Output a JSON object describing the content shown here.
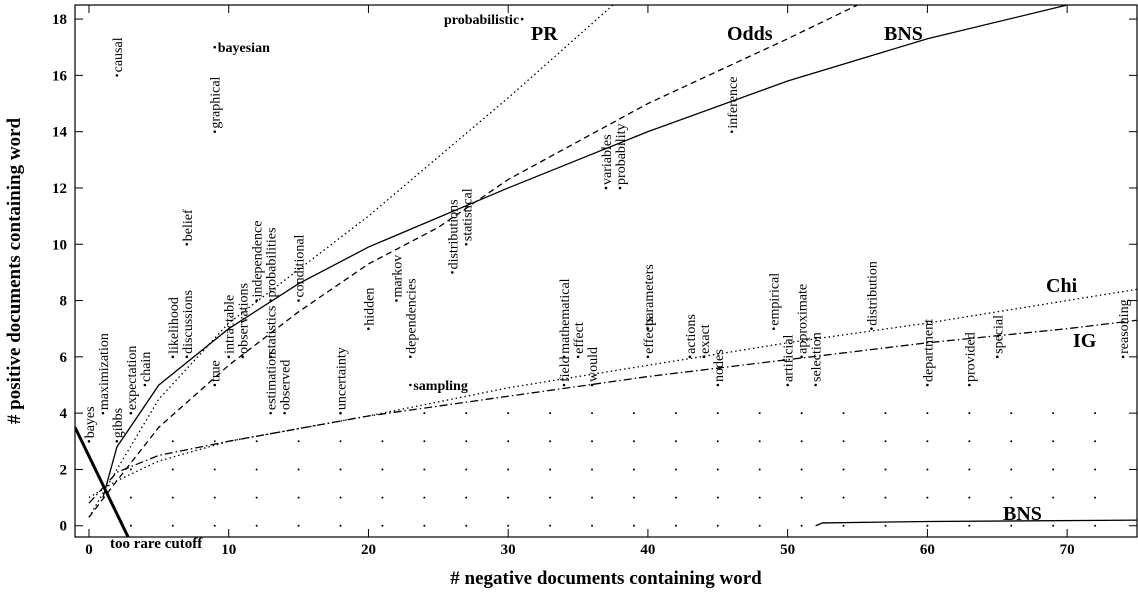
{
  "chart_data": {
    "type": "scatter",
    "x_label": "# negative documents containing word",
    "y_label": "# positive documents containing word",
    "xlim": [
      -1,
      75
    ],
    "ylim": [
      -0.4,
      18.5
    ],
    "xticks": [
      0,
      10,
      20,
      30,
      40,
      50,
      60,
      70
    ],
    "yticks": [
      0,
      2,
      4,
      6,
      8,
      10,
      12,
      14,
      16,
      18
    ],
    "points": [
      {
        "label": "causal",
        "x": 2,
        "y": 16
      },
      {
        "label": "graphical",
        "x": 9,
        "y": 14
      },
      {
        "label": "inference",
        "x": 46,
        "y": 14
      },
      {
        "label": "variables",
        "x": 37,
        "y": 12
      },
      {
        "label": "probability",
        "x": 38,
        "y": 12
      },
      {
        "label": "distributions",
        "x": 26,
        "y": 9
      },
      {
        "label": "statistical",
        "x": 27,
        "y": 10
      },
      {
        "label": "belief",
        "x": 7,
        "y": 10
      },
      {
        "label": "independence",
        "x": 12,
        "y": 8
      },
      {
        "label": "probabilities",
        "x": 13,
        "y": 8
      },
      {
        "label": "conditional",
        "x": 15,
        "y": 8
      },
      {
        "label": "markov",
        "x": 22,
        "y": 8
      },
      {
        "label": "dependencies",
        "x": 23,
        "y": 6
      },
      {
        "label": "hidden",
        "x": 20,
        "y": 7
      },
      {
        "label": "uncertainty",
        "x": 18,
        "y": 4
      },
      {
        "label": "estimation",
        "x": 13,
        "y": 4
      },
      {
        "label": "statistics",
        "x": 13,
        "y": 6
      },
      {
        "label": "observed",
        "x": 14,
        "y": 4
      },
      {
        "label": "observations",
        "x": 11,
        "y": 6
      },
      {
        "label": "intractable",
        "x": 10,
        "y": 6
      },
      {
        "label": "true",
        "x": 9,
        "y": 5
      },
      {
        "label": "likelihood",
        "x": 6,
        "y": 6
      },
      {
        "label": "discussions",
        "x": 7,
        "y": 6
      },
      {
        "label": "chain",
        "x": 4,
        "y": 5
      },
      {
        "label": "expectation",
        "x": 3,
        "y": 4
      },
      {
        "label": "gibbs",
        "x": 2,
        "y": 3
      },
      {
        "label": "maximization",
        "x": 1,
        "y": 4
      },
      {
        "label": "bayes",
        "x": 0,
        "y": 3
      },
      {
        "label": "field",
        "x": 34,
        "y": 5
      },
      {
        "label": "mathematical",
        "x": 34,
        "y": 6
      },
      {
        "label": "effect",
        "x": 35,
        "y": 6
      },
      {
        "label": "would",
        "x": 36,
        "y": 5
      },
      {
        "label": "effects",
        "x": 40,
        "y": 6
      },
      {
        "label": "parameters",
        "x": 40,
        "y": 7
      },
      {
        "label": "actions",
        "x": 43,
        "y": 6
      },
      {
        "label": "exact",
        "x": 44,
        "y": 6
      },
      {
        "label": "nodes",
        "x": 45,
        "y": 5
      },
      {
        "label": "empirical",
        "x": 49,
        "y": 7
      },
      {
        "label": "artificial",
        "x": 50,
        "y": 5
      },
      {
        "label": "approximate",
        "x": 51,
        "y": 6
      },
      {
        "label": "selection",
        "x": 52,
        "y": 5
      },
      {
        "label": "distribution",
        "x": 56,
        "y": 7
      },
      {
        "label": "department",
        "x": 60,
        "y": 5
      },
      {
        "label": "provided",
        "x": 63,
        "y": 5
      },
      {
        "label": "special",
        "x": 65,
        "y": 6
      },
      {
        "label": "reasoning",
        "x": 74,
        "y": 6
      }
    ],
    "flat_points": [
      {
        "label": "probabilistic",
        "x": 31,
        "y": 18
      },
      {
        "label": "bayesian",
        "x": 9,
        "y": 17
      },
      {
        "label": "sampling",
        "x": 23,
        "y": 5
      }
    ],
    "dot_rows": [
      {
        "y": 4,
        "x": [
          24,
          27,
          30,
          33,
          36,
          39,
          42,
          45,
          48,
          51,
          54,
          57,
          60,
          63,
          66,
          69,
          72
        ]
      },
      {
        "y": 3,
        "x": [
          6,
          9,
          12,
          15,
          18,
          21,
          24,
          27,
          30,
          33,
          36,
          39,
          42,
          45,
          48,
          51,
          54,
          57,
          60,
          63,
          66,
          69,
          72
        ]
      },
      {
        "y": 2,
        "x": [
          3,
          6,
          9,
          12,
          15,
          18,
          21,
          24,
          27,
          30,
          33,
          36,
          39,
          42,
          45,
          48,
          51,
          54,
          57,
          60,
          63,
          66,
          69,
          72
        ]
      },
      {
        "y": 1,
        "x": [
          3,
          6,
          9,
          12,
          15,
          18,
          21,
          24,
          27,
          30,
          33,
          36,
          39,
          42,
          45,
          48,
          51,
          54,
          57,
          60,
          63,
          66,
          69,
          72
        ]
      },
      {
        "y": 0,
        "x": [
          3,
          6,
          9,
          12,
          15,
          18,
          21,
          24,
          27,
          30,
          33,
          36,
          39,
          42,
          45,
          48,
          51,
          54,
          57,
          60,
          63,
          66,
          69,
          72
        ]
      }
    ],
    "series": [
      {
        "name": "PR",
        "style": "dotted",
        "x": [
          0,
          2,
          5,
          10,
          20,
          30,
          37.5
        ],
        "values": [
          0.3,
          2,
          4.5,
          7.2,
          11,
          15.2,
          18.5
        ]
      },
      {
        "name": "Odds",
        "style": "dashed",
        "x": [
          0,
          2,
          5,
          10,
          15,
          20,
          25,
          30,
          40,
          50,
          55
        ],
        "values": [
          0.3,
          1.6,
          3.5,
          5.7,
          7.6,
          9.3,
          10.6,
          12.3,
          15,
          17.3,
          18.5
        ]
      },
      {
        "name": "BNS",
        "style": "solid",
        "x": [
          1,
          2,
          5,
          10,
          15,
          20,
          30,
          40,
          50,
          60,
          70
        ],
        "values": [
          1,
          2.8,
          5,
          7,
          8.6,
          9.9,
          12,
          14,
          15.8,
          17.3,
          18.5
        ]
      },
      {
        "name": "Chi",
        "style": "dotted",
        "x": [
          0,
          2,
          5,
          10,
          20,
          30,
          40,
          50,
          60,
          70,
          75
        ],
        "values": [
          1,
          1.6,
          2.3,
          3,
          3.9,
          4.9,
          5.7,
          6.5,
          7.2,
          8,
          8.4
        ]
      },
      {
        "name": "IG",
        "style": "dashdot",
        "x": [
          0,
          2,
          5,
          10,
          20,
          30,
          40,
          50,
          60,
          70,
          75
        ],
        "values": [
          0.8,
          1.9,
          2.5,
          3,
          3.9,
          4.6,
          5.3,
          5.9,
          6.5,
          7,
          7.3
        ]
      },
      {
        "name": "BNS",
        "style": "solid",
        "x": [
          52,
          52.5,
          60,
          75
        ],
        "values": [
          0,
          0.1,
          0.15,
          0.2
        ]
      },
      {
        "name": "too rare cutoff",
        "style": "thick",
        "x": [
          -1,
          2.8
        ],
        "values": [
          3.5,
          -0.4
        ]
      }
    ]
  }
}
